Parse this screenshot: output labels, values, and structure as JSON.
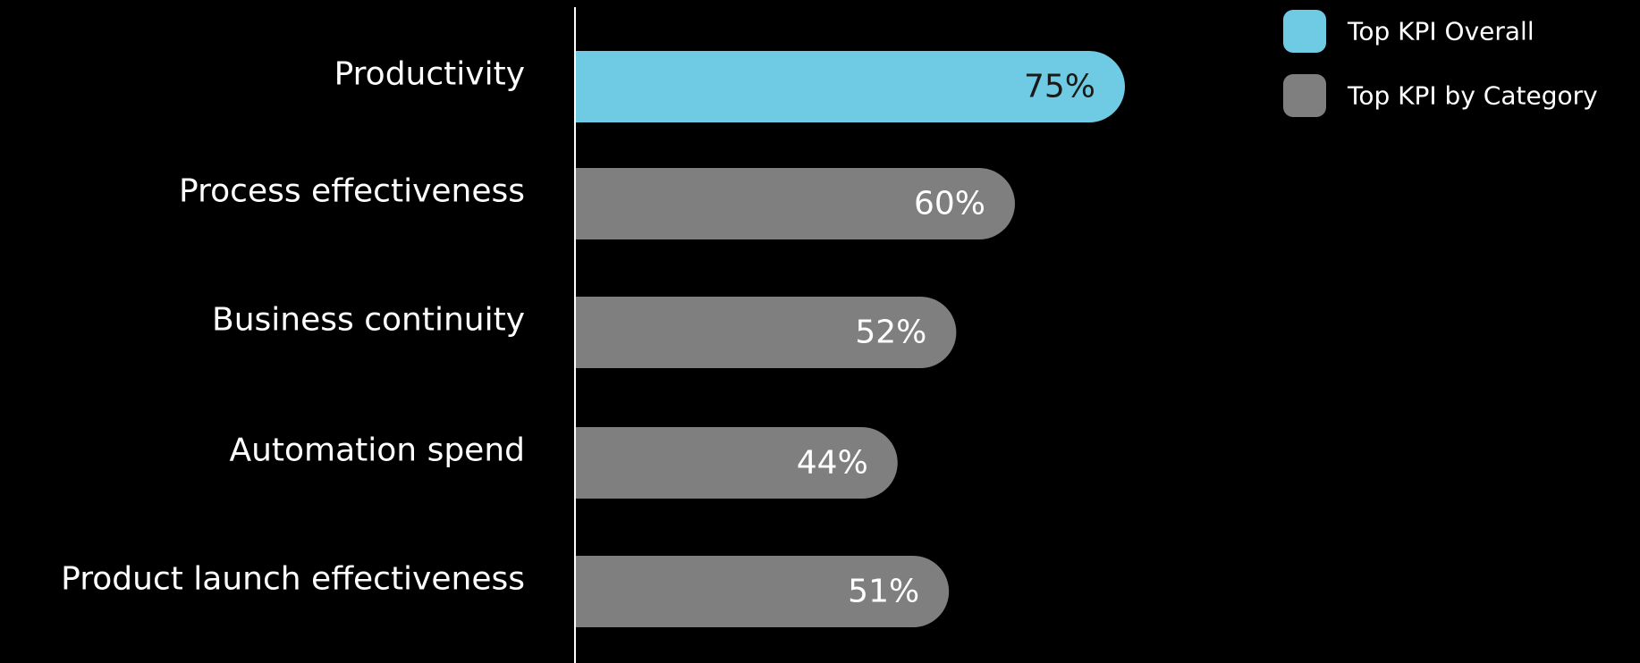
{
  "chart_data": {
    "type": "bar",
    "orientation": "horizontal",
    "categories": [
      "Productivity",
      "Process effectiveness",
      "Business continuity",
      "Automation spend",
      "Product launch effectiveness"
    ],
    "values": [
      75,
      60,
      52,
      44,
      51
    ],
    "value_labels": [
      "75%",
      "60%",
      "52%",
      "44%",
      "51%"
    ],
    "bar_series": [
      "overall",
      "category",
      "category",
      "category",
      "category"
    ],
    "xlim": [
      0,
      100
    ],
    "grid": false,
    "legend_position": "top-right",
    "legend": [
      {
        "key": "overall",
        "name": "Top KPI Overall",
        "color": "#6ecbe3",
        "text_color": "#1a1a1a"
      },
      {
        "key": "category",
        "name": "Top KPI by Category",
        "color": "#7f7f7f",
        "text_color": "#ffffff"
      }
    ]
  },
  "colors": {
    "background": "#000000",
    "axis": "#ffffff",
    "text": "#ffffff"
  }
}
